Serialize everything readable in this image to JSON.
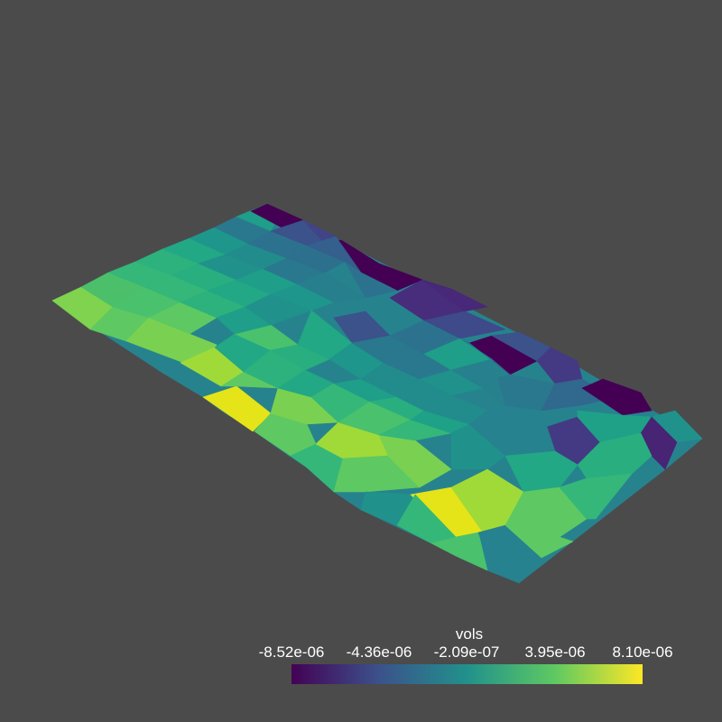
{
  "scalar_bar": {
    "title": "vols",
    "labels": [
      "-8.52e-06",
      "-4.36e-06",
      "-2.09e-07",
      "3.95e-06",
      "8.10e-06"
    ],
    "colormap": [
      "#440154",
      "#3b528b",
      "#21918c",
      "#5ec962",
      "#fde725"
    ]
  },
  "colors": {
    "background": "#4b4b4b",
    "text": "#ffffff"
  }
}
